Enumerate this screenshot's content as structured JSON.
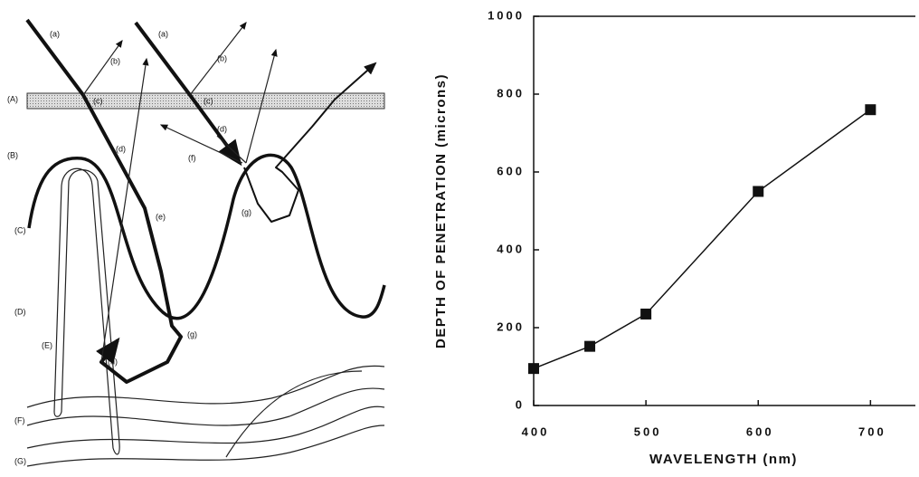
{
  "diagram": {
    "labels": [
      "(a)",
      "(b)",
      "(c)",
      "(d)",
      "(e)",
      "(f)",
      "(g)",
      "(g)",
      "(h)",
      "(a)",
      "(b)",
      "(c)",
      "(d)",
      "(A)",
      "(B)",
      "(C)",
      "(D)",
      "(E)",
      "(F)",
      "(G)"
    ]
  },
  "chart_data": {
    "type": "line",
    "x_label": "WAVELENGTH (nm)",
    "y_label": "DEPTH OF PENETRATION (microns)",
    "x": [
      400,
      450,
      500,
      600,
      700
    ],
    "values": [
      95,
      152,
      235,
      550,
      760
    ],
    "color": "#111111",
    "xlim": [
      400,
      740
    ],
    "ylim": [
      0,
      1000
    ],
    "xticks": [
      400,
      500,
      600,
      700
    ],
    "yticks": [
      0,
      200,
      400,
      600,
      800,
      1000
    ]
  }
}
